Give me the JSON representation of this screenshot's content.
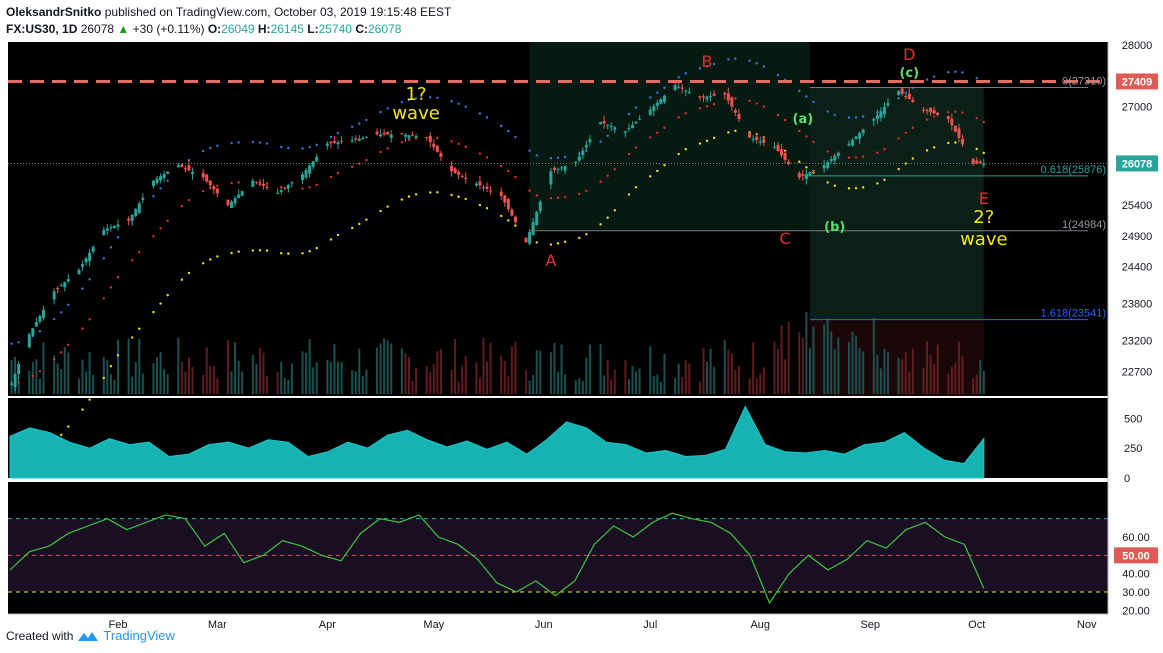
{
  "header": {
    "author": "OleksandrSnitko",
    "published": "published on TradingView.com, October 03, 2019 19:15:48 EEST",
    "symbol": "FX:US30, 1D",
    "last": "26078",
    "change_arrow": "▲",
    "change": "+30 (+0.11%)",
    "o_label": "O:",
    "o": "26049",
    "h_label": "H:",
    "h": "26145",
    "l_label": "L:",
    "l": "25740",
    "c_label": "C:",
    "c": "26078"
  },
  "footer": {
    "created_with": "Created with",
    "brand": "TradingView"
  },
  "colors": {
    "background": "#000000",
    "up_candle": "#26a69a",
    "down_candle": "#ef5350",
    "upper_band": "#2f7de1",
    "middle_band": "#e0302e",
    "lower_band": "#f2e711",
    "resistance": "#e86a63",
    "volume_area": "#1c3552",
    "indicator_fill": "#17b3b3",
    "rsi_line": "#3fc43f",
    "wave_label": "#f2e711",
    "abc_label": "#e0302e",
    "sub_label": "#58e06a"
  },
  "chart_data": [
    {
      "type": "candlestick",
      "title": "FX:US30, 1D",
      "y_ticks": [
        "28000",
        "27409",
        "27000",
        "26078",
        "25400",
        "24900",
        "24400",
        "23800",
        "23200",
        "22700"
      ],
      "ylim": [
        22300,
        28050
      ],
      "x_ticks": [
        "Feb",
        "Mar",
        "Apr",
        "May",
        "Jun",
        "Jul",
        "Aug",
        "Sep",
        "Oct",
        "Nov"
      ],
      "grid": false,
      "last_price": 26078,
      "resistance_level": 27409,
      "series_close": [
        {
          "date": "2019-01-02",
          "close": 22500
        },
        {
          "date": "2019-01-07",
          "close": 23300
        },
        {
          "date": "2019-01-14",
          "close": 24000
        },
        {
          "date": "2019-01-21",
          "close": 24350
        },
        {
          "date": "2019-01-28",
          "close": 25000
        },
        {
          "date": "2019-02-04",
          "close": 25150
        },
        {
          "date": "2019-02-11",
          "close": 25800
        },
        {
          "date": "2019-02-18",
          "close": 26050
        },
        {
          "date": "2019-02-25",
          "close": 25850
        },
        {
          "date": "2019-03-04",
          "close": 25400
        },
        {
          "date": "2019-03-11",
          "close": 25800
        },
        {
          "date": "2019-03-18",
          "close": 25600
        },
        {
          "date": "2019-03-25",
          "close": 25900
        },
        {
          "date": "2019-04-01",
          "close": 26400
        },
        {
          "date": "2019-04-08",
          "close": 26450
        },
        {
          "date": "2019-04-15",
          "close": 26550
        },
        {
          "date": "2019-04-22",
          "close": 26550
        },
        {
          "date": "2019-04-29",
          "close": 26500
        },
        {
          "date": "2019-05-06",
          "close": 25950
        },
        {
          "date": "2019-05-13",
          "close": 25750
        },
        {
          "date": "2019-05-20",
          "close": 25550
        },
        {
          "date": "2019-05-27",
          "close": 24800
        },
        {
          "date": "2019-06-03",
          "close": 25950
        },
        {
          "date": "2019-06-10",
          "close": 26100
        },
        {
          "date": "2019-06-17",
          "close": 26750
        },
        {
          "date": "2019-06-24",
          "close": 26600
        },
        {
          "date": "2019-07-01",
          "close": 26950
        },
        {
          "date": "2019-07-08",
          "close": 27350
        },
        {
          "date": "2019-07-15",
          "close": 27150
        },
        {
          "date": "2019-07-22",
          "close": 27200
        },
        {
          "date": "2019-07-29",
          "close": 26500
        },
        {
          "date": "2019-08-05",
          "close": 26350
        },
        {
          "date": "2019-08-12",
          "close": 25850
        },
        {
          "date": "2019-08-19",
          "close": 26050
        },
        {
          "date": "2019-08-26",
          "close": 26400
        },
        {
          "date": "2019-09-02",
          "close": 26800
        },
        {
          "date": "2019-09-09",
          "close": 27250
        },
        {
          "date": "2019-09-16",
          "close": 26950
        },
        {
          "date": "2019-09-23",
          "close": 26800
        },
        {
          "date": "2019-09-30",
          "close": 26078
        }
      ],
      "fib_levels": [
        {
          "label": "0(27310)",
          "value": 27310
        },
        {
          "label": "0.618(25876)",
          "value": 25876
        },
        {
          "label": "1(24984)",
          "value": 24984
        },
        {
          "label": "1.618(23541)",
          "value": 23541
        }
      ],
      "annotations": [
        {
          "text": "1?",
          "date": "2019-04-26"
        },
        {
          "text": "wave",
          "date": "2019-04-26"
        },
        {
          "text": "A",
          "date": "2019-06-03"
        },
        {
          "text": "B",
          "date": "2019-07-17"
        },
        {
          "text": "C",
          "date": "2019-08-08"
        },
        {
          "text": "(a)",
          "date": "2019-08-13"
        },
        {
          "text": "(b)",
          "date": "2019-08-22"
        },
        {
          "text": "(c)",
          "date": "2019-09-12"
        },
        {
          "text": "D",
          "date": "2019-09-12"
        },
        {
          "text": "E",
          "date": "2019-10-03"
        },
        {
          "text": "2?",
          "date": "2019-10-03"
        },
        {
          "text": "wave",
          "date": "2019-10-03"
        }
      ]
    },
    {
      "type": "area",
      "y_ticks": [
        "500",
        "250",
        "0"
      ],
      "ylim": [
        0,
        620
      ],
      "values": [
        350,
        420,
        380,
        300,
        250,
        330,
        280,
        300,
        180,
        200,
        280,
        300,
        250,
        320,
        300,
        180,
        220,
        300,
        250,
        360,
        400,
        320,
        260,
        310,
        240,
        300,
        200,
        320,
        470,
        420,
        300,
        280,
        210,
        230,
        180,
        190,
        240,
        600,
        280,
        220,
        210,
        230,
        200,
        280,
        300,
        380,
        250,
        150,
        120,
        330
      ]
    },
    {
      "type": "line",
      "y_ticks": [
        "60.00",
        "50.00",
        "40.00",
        "30.00",
        "20.00"
      ],
      "ylim": [
        18,
        90
      ],
      "levels": [
        70,
        50,
        30
      ],
      "level_labels": [
        "50.00"
      ],
      "values": [
        42,
        52,
        55,
        62,
        66,
        70,
        64,
        68,
        72,
        70,
        55,
        62,
        46,
        50,
        58,
        55,
        50,
        47,
        62,
        70,
        68,
        72,
        60,
        56,
        48,
        35,
        30,
        36,
        28,
        36,
        56,
        66,
        60,
        68,
        73,
        70,
        68,
        62,
        50,
        24,
        40,
        50,
        42,
        48,
        58,
        54,
        64,
        68,
        60,
        56,
        32
      ]
    }
  ]
}
